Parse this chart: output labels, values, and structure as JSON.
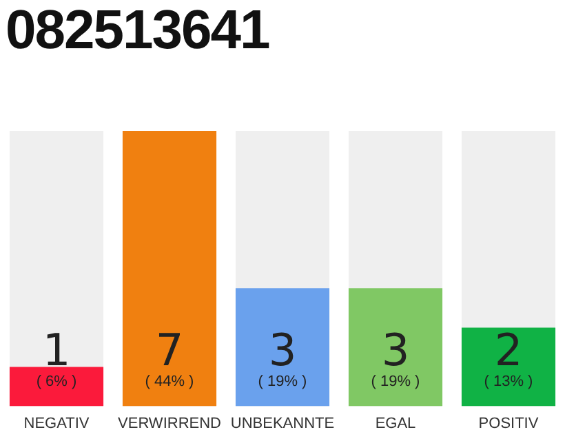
{
  "chart_data": {
    "type": "bar",
    "title": "082513641",
    "categories": [
      "NEGATIV",
      "VERWIRREND",
      "UNBEKANNTE",
      "EGAL",
      "POSITIV"
    ],
    "values": [
      1,
      7,
      3,
      3,
      2
    ],
    "colors": [
      "#fb1a3b",
      "#f08010",
      "#6aa1ed",
      "#80c864",
      "#10b245"
    ],
    "data_labels": true,
    "annotations": [
      "( 6% )",
      "( 44% )",
      "( 19% )",
      "( 19% )",
      "( 13% )"
    ],
    "tick_labels": "x",
    "grid": false,
    "legend": false
  }
}
